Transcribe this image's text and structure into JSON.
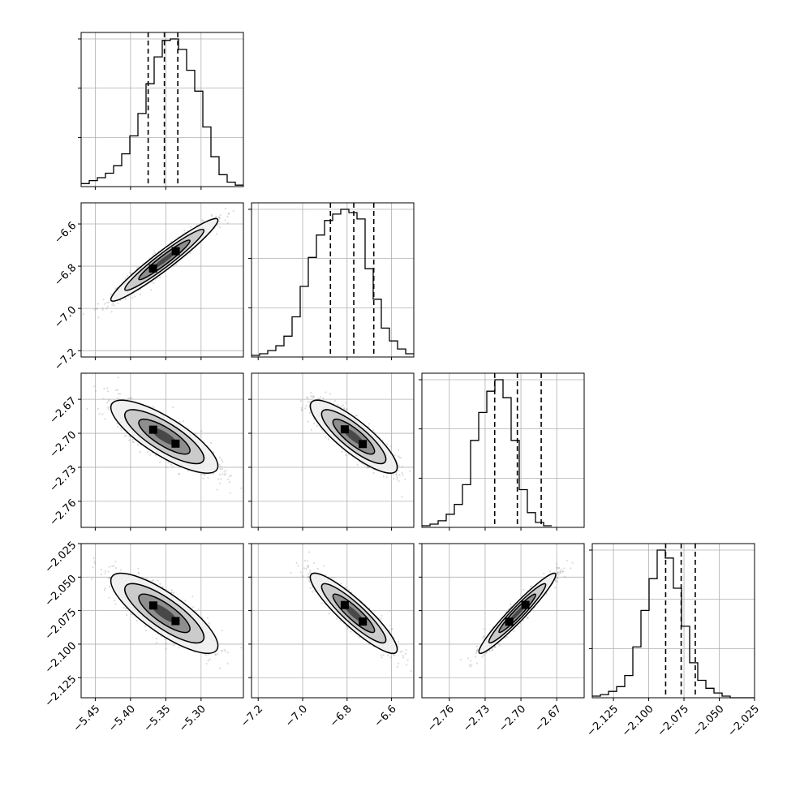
{
  "chart_data": {
    "type": "corner",
    "parameters": 4,
    "grid": true,
    "colors": {
      "line": "#000000",
      "grid": "#b0b0b0",
      "scatter": "#808080"
    },
    "axes": [
      {
        "range": [
          -5.47,
          -5.24
        ],
        "ticks": [
          -5.45,
          -5.4,
          -5.35,
          -5.3
        ],
        "tick_labels": [
          "−5.45",
          "−5.40",
          "−5.35",
          "−5.30"
        ]
      },
      {
        "range": [
          -7.23,
          -6.5
        ],
        "ticks": [
          -7.2,
          -7.0,
          -6.8,
          -6.6
        ],
        "tick_labels": [
          "−7.2",
          "−7.0",
          "−6.8",
          "−6.6"
        ]
      },
      {
        "range": [
          -2.783,
          -2.647
        ],
        "ticks": [
          -2.76,
          -2.73,
          -2.7,
          -2.67
        ],
        "tick_labels": [
          "−2.76",
          "−2.73",
          "−2.70",
          "−2.67"
        ]
      },
      {
        "range": [
          -2.14,
          -2.025
        ],
        "ticks": [
          -2.125,
          -2.1,
          -2.075,
          -2.05,
          -2.025
        ],
        "tick_labels": [
          "−2.125",
          "−2.100",
          "−2.075",
          "−2.050",
          "−2.025"
        ]
      }
    ],
    "histograms": [
      {
        "bin_start": -5.47,
        "bin_width": 0.0115,
        "counts": [
          2,
          4,
          6,
          9,
          14,
          22,
          34,
          49,
          69,
          87,
          98,
          99,
          92,
          78,
          64,
          40,
          20,
          8,
          3,
          1
        ],
        "quantiles": [
          -5.375,
          -5.352,
          -5.333
        ]
      },
      {
        "bin_start": -7.23,
        "bin_width": 0.0365,
        "counts": [
          1,
          2,
          4,
          7,
          13,
          25,
          44,
          62,
          76,
          85,
          89,
          92,
          90,
          86,
          55,
          36,
          18,
          10,
          5,
          2
        ],
        "quantiles": [
          -6.875,
          -6.77,
          -6.68
        ]
      },
      {
        "bin_start": -2.783,
        "bin_width": 0.0068,
        "counts": [
          1,
          2,
          4,
          8,
          14,
          26,
          53,
          70,
          83,
          90,
          79,
          53,
          23,
          9,
          3,
          1
        ],
        "quantiles": [
          -2.722,
          -2.703,
          -2.683
        ]
      },
      {
        "bin_start": -2.14,
        "bin_width": 0.00575,
        "counts": [
          1,
          2,
          4,
          7,
          14,
          32,
          55,
          75,
          93,
          88,
          69,
          45,
          22,
          11,
          6,
          3,
          1,
          0,
          0,
          0
        ],
        "quantiles": [
          -2.088,
          -2.077,
          -2.067
        ]
      }
    ],
    "pairs": [
      {
        "row": 1,
        "col": 0,
        "mean": [
          -5.352,
          -6.77
        ],
        "sd": [
          0.033,
          0.085
        ],
        "corr": 0.96,
        "points": 1400
      },
      {
        "row": 2,
        "col": 0,
        "mean": [
          -5.352,
          -2.703
        ],
        "sd": [
          0.033,
          0.014
        ],
        "corr": -0.8,
        "points": 1400
      },
      {
        "row": 2,
        "col": 1,
        "mean": [
          -6.77,
          -2.703
        ],
        "sd": [
          0.085,
          0.014
        ],
        "corr": -0.84,
        "points": 1400
      },
      {
        "row": 3,
        "col": 0,
        "mean": [
          -5.352,
          -2.077
        ],
        "sd": [
          0.033,
          0.013
        ],
        "corr": -0.81,
        "points": 1400
      },
      {
        "row": 3,
        "col": 1,
        "mean": [
          -6.77,
          -2.077
        ],
        "sd": [
          0.085,
          0.013
        ],
        "corr": -0.9,
        "points": 1400
      },
      {
        "row": 3,
        "col": 2,
        "mean": [
          -2.703,
          -2.077
        ],
        "sd": [
          0.014,
          0.013
        ],
        "corr": 0.96,
        "points": 1400
      }
    ]
  }
}
